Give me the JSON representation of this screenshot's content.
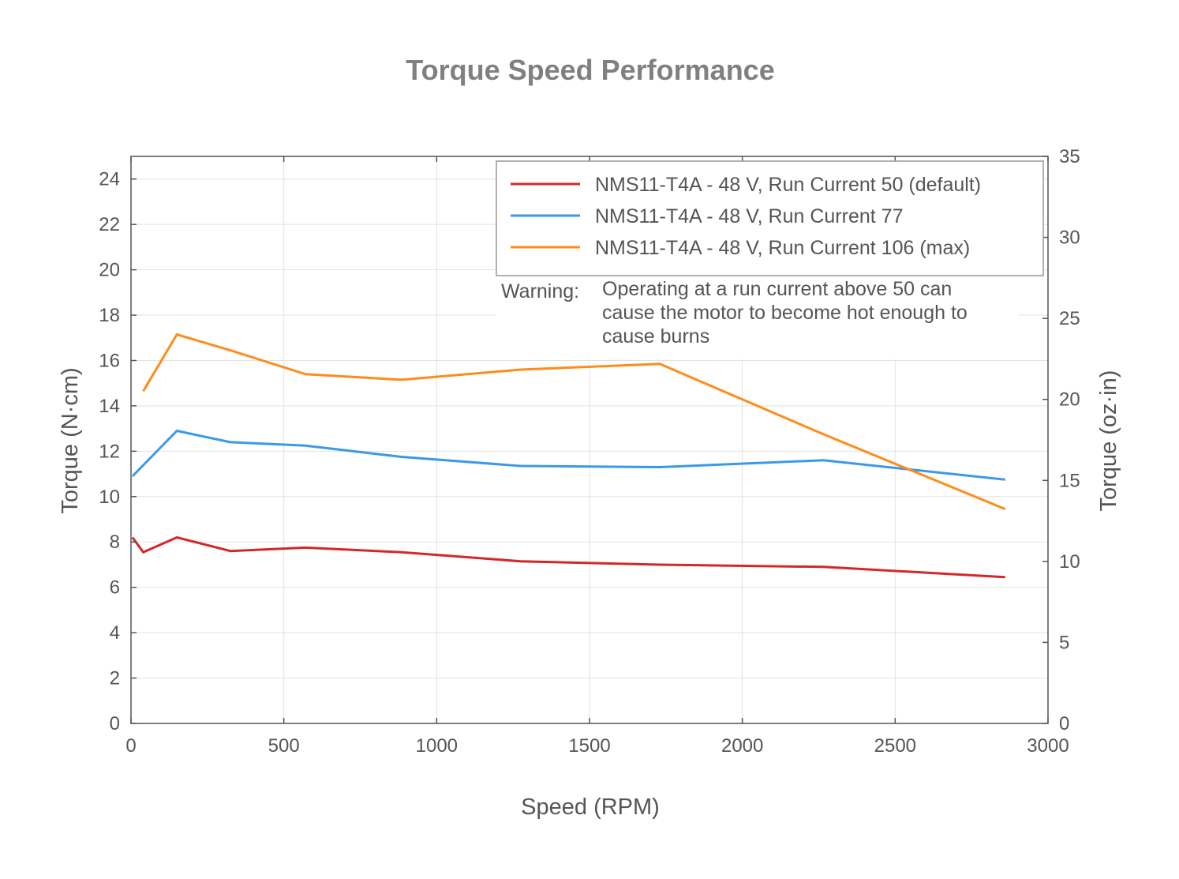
{
  "chart_data": {
    "type": "line",
    "title": "Torque Speed Performance",
    "xlabel": "Speed (RPM)",
    "ylabel": "Torque (N·cm)",
    "y2label": "Torque (oz·in)",
    "xlim": [
      0,
      3000
    ],
    "ylim": [
      0,
      25
    ],
    "y2lim": [
      0,
      35
    ],
    "x_ticks": [
      "0",
      "500",
      "1000",
      "1500",
      "2000",
      "2500",
      "3000"
    ],
    "y_ticks": [
      "0",
      "2",
      "4",
      "6",
      "8",
      "10",
      "12",
      "14",
      "16",
      "18",
      "20",
      "22",
      "24"
    ],
    "y2_ticks": [
      "0",
      "5",
      "10",
      "15",
      "20",
      "25",
      "30",
      "35"
    ],
    "grid": true,
    "legend_position": "top-right",
    "series": [
      {
        "name": "NMS11-T4A - 48 V, Run Current 50 (default)",
        "color": "#d62728",
        "x": [
          5,
          40,
          150,
          325,
          570,
          885,
          1275,
          1730,
          2265,
          2860
        ],
        "y": [
          8.2,
          7.55,
          8.2,
          7.6,
          7.75,
          7.55,
          7.15,
          7.0,
          6.9,
          6.45
        ]
      },
      {
        "name": "NMS11-T4A - 48 V, Run Current 77",
        "color": "#3b99e8",
        "x": [
          5,
          150,
          325,
          570,
          885,
          1275,
          1730,
          2265,
          2860
        ],
        "y": [
          10.9,
          12.9,
          12.4,
          12.25,
          11.75,
          11.35,
          11.3,
          11.6,
          10.75
        ]
      },
      {
        "name": "NMS11-T4A - 48 V, Run Current 106 (max)",
        "color": "#ff8c1a",
        "x": [
          40,
          150,
          325,
          570,
          885,
          1275,
          1730,
          2265,
          2860
        ],
        "y": [
          14.65,
          17.15,
          16.45,
          15.4,
          15.15,
          15.6,
          15.85,
          12.75,
          9.45
        ]
      }
    ],
    "annotation": {
      "label": "Warning:",
      "lines": [
        "Operating at a run current above 50 can",
        "cause the motor to become hot enough to",
        "cause burns"
      ]
    }
  }
}
